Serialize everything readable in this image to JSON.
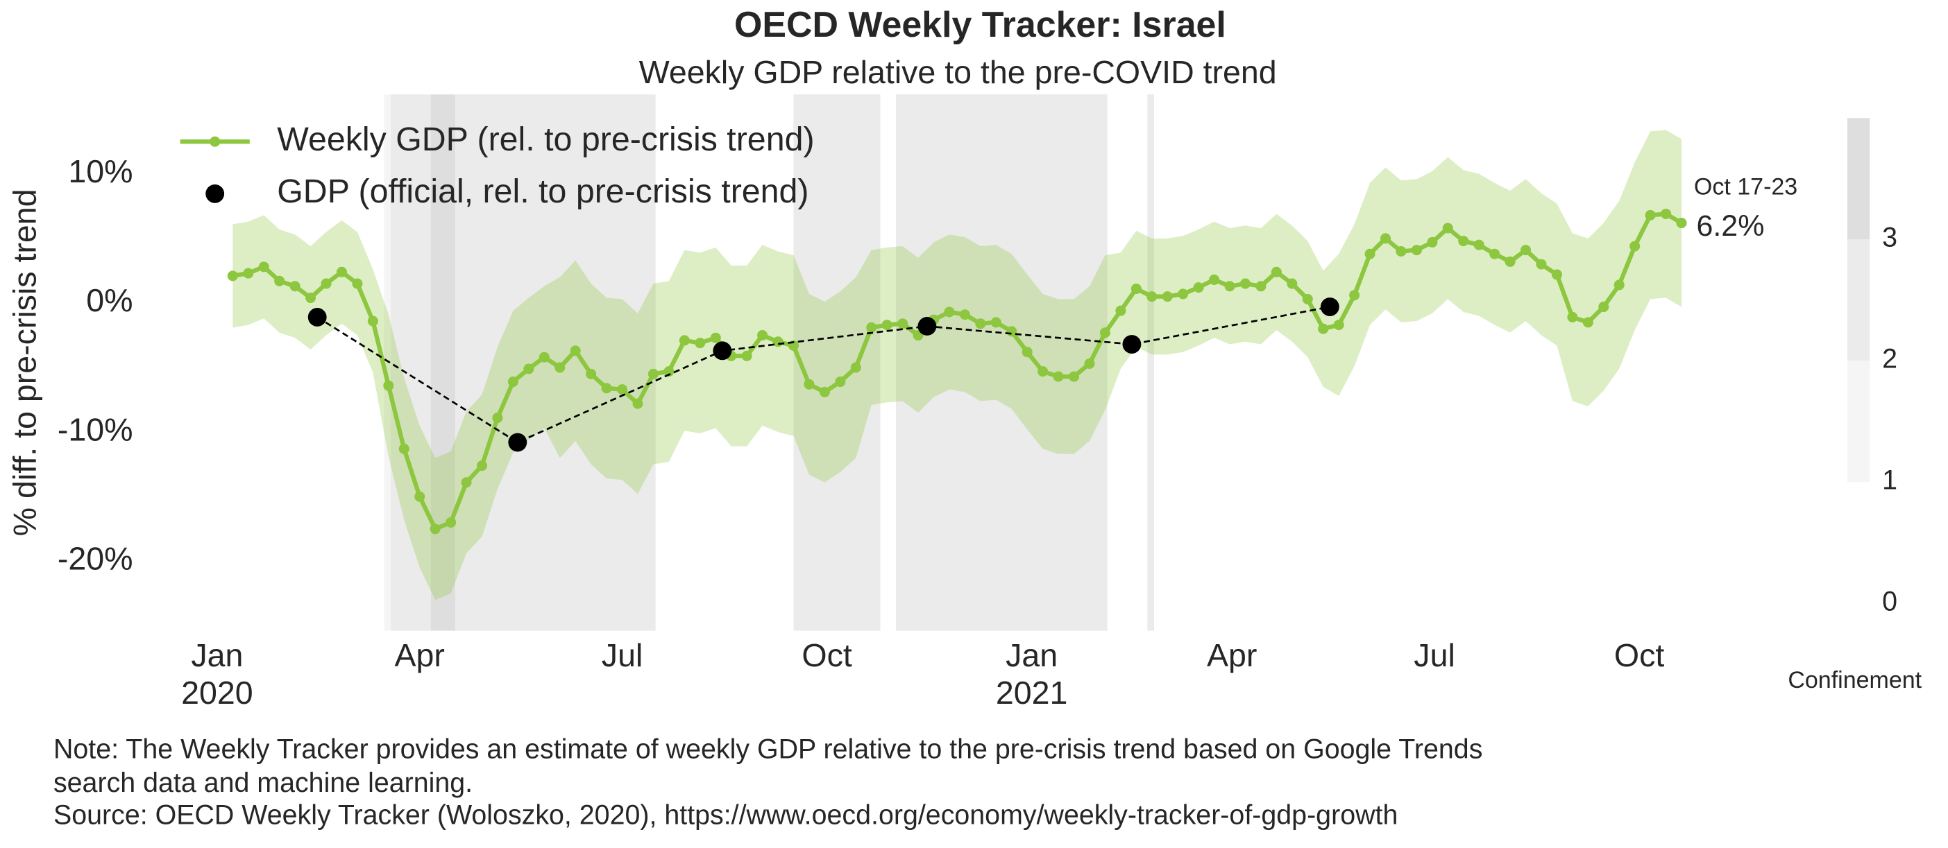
{
  "chart_data": {
    "type": "line",
    "title": "OECD Weekly Tracker: Israel",
    "subtitle": "Weekly GDP relative to the pre-COVID trend",
    "y_label": "% diff. to pre-crisis trend",
    "notes": [
      "Note: The Weekly Tracker provides an estimate of weekly GDP relative to the pre-crisis trend based on Google Trends",
      "search data and machine learning.",
      "Source: OECD Weekly Tracker (Woloszko, 2020), https://www.oecd.org/economy/weekly-tracker-of-gdp-growth"
    ],
    "xlim": [
      "2019-12-07",
      "2021-11-01"
    ],
    "xticks": [
      {
        "value": "2020-01-01",
        "label": [
          "Jan",
          "2020"
        ]
      },
      {
        "value": "2020-04-01",
        "label": "Apr"
      },
      {
        "value": "2020-07-01",
        "label": "Jul"
      },
      {
        "value": "2020-10-01",
        "label": "Oct"
      },
      {
        "value": "2021-01-01",
        "label": [
          "Jan",
          "2021"
        ]
      },
      {
        "value": "2021-04-01",
        "label": "Apr"
      },
      {
        "value": "2021-07-01",
        "label": "Jul"
      },
      {
        "value": "2021-10-01",
        "label": "Oct"
      }
    ],
    "ylim": [
      -25,
      15
    ],
    "yticks": [
      {
        "value": 10,
        "label": "10%"
      },
      {
        "value": 0,
        "label": "0%"
      },
      {
        "value": -10,
        "label": "-10%"
      },
      {
        "value": -20,
        "label": "-20%"
      }
    ],
    "grid": false,
    "legend": "upper left",
    "x": [
      "2020-01-08",
      "2020-01-15",
      "2020-01-22",
      "2020-01-29",
      "2020-02-05",
      "2020-02-12",
      "2020-02-19",
      "2020-02-26",
      "2020-03-04",
      "2020-03-11",
      "2020-03-18",
      "2020-03-25",
      "2020-04-01",
      "2020-04-08",
      "2020-04-15",
      "2020-04-22",
      "2020-04-29",
      "2020-05-06",
      "2020-05-13",
      "2020-05-20",
      "2020-05-27",
      "2020-06-03",
      "2020-06-10",
      "2020-06-17",
      "2020-06-24",
      "2020-07-01",
      "2020-07-08",
      "2020-07-15",
      "2020-07-22",
      "2020-07-29",
      "2020-08-05",
      "2020-08-12",
      "2020-08-19",
      "2020-08-26",
      "2020-09-02",
      "2020-09-09",
      "2020-09-16",
      "2020-09-23",
      "2020-09-30",
      "2020-10-07",
      "2020-10-14",
      "2020-10-21",
      "2020-10-28",
      "2020-11-04",
      "2020-11-11",
      "2020-11-18",
      "2020-11-25",
      "2020-12-02",
      "2020-12-09",
      "2020-12-16",
      "2020-12-23",
      "2020-12-30",
      "2021-01-06",
      "2021-01-13",
      "2021-01-20",
      "2021-01-27",
      "2021-02-03",
      "2021-02-10",
      "2021-02-17",
      "2021-02-24",
      "2021-03-03",
      "2021-03-10",
      "2021-03-17",
      "2021-03-24",
      "2021-03-31",
      "2021-04-07",
      "2021-04-14",
      "2021-04-21",
      "2021-04-28",
      "2021-05-05",
      "2021-05-12",
      "2021-05-19",
      "2021-05-26",
      "2021-06-02",
      "2021-06-09",
      "2021-06-16",
      "2021-06-23",
      "2021-06-30",
      "2021-07-07",
      "2021-07-14",
      "2021-07-21",
      "2021-07-28",
      "2021-08-04",
      "2021-08-11",
      "2021-08-18",
      "2021-08-25",
      "2021-09-01",
      "2021-09-08",
      "2021-09-15",
      "2021-09-22",
      "2021-09-29",
      "2021-10-06",
      "2021-10-13",
      "2021-10-20"
    ],
    "series": [
      {
        "name": "Weekly GDP (rel. to pre-crisis trend)",
        "color": "#8dc63f",
        "values": [
          2.1,
          2.3,
          2.8,
          1.7,
          1.3,
          0.4,
          1.5,
          2.4,
          1.5,
          -1.4,
          -6.4,
          -11.3,
          -15.0,
          -17.5,
          -17.0,
          -13.9,
          -12.6,
          -8.9,
          -6.1,
          -5.1,
          -4.2,
          -5.0,
          -3.7,
          -5.5,
          -6.6,
          -6.7,
          -7.8,
          -5.5,
          -5.3,
          -2.9,
          -3.1,
          -2.7,
          -4.1,
          -4.1,
          -2.5,
          -3.0,
          -3.3,
          -6.3,
          -6.9,
          -6.1,
          -5.0,
          -1.9,
          -1.7,
          -1.6,
          -2.5,
          -1.3,
          -0.7,
          -0.9,
          -1.6,
          -1.5,
          -2.2,
          -3.8,
          -5.3,
          -5.7,
          -5.7,
          -4.7,
          -2.3,
          -0.6,
          1.1,
          0.5,
          0.5,
          0.7,
          1.2,
          1.8,
          1.3,
          1.5,
          1.3,
          2.4,
          1.5,
          0.3,
          -2.0,
          -1.7,
          0.6,
          3.8,
          5.0,
          4.0,
          4.1,
          4.7,
          5.8,
          4.8,
          4.5,
          3.8,
          3.2,
          4.1,
          3.0,
          2.2,
          -1.1,
          -1.5,
          -0.3,
          1.4,
          4.4,
          6.8,
          6.9,
          6.2
        ],
        "band_upper": [
          6.1,
          6.3,
          6.8,
          5.7,
          5.3,
          4.4,
          5.5,
          6.4,
          5.5,
          2.6,
          -0.9,
          -5.8,
          -9.5,
          -12.0,
          -11.5,
          -8.4,
          -7.1,
          -3.4,
          -0.6,
          0.4,
          1.3,
          2.0,
          3.3,
          1.5,
          0.4,
          0.3,
          -0.8,
          1.5,
          1.7,
          4.1,
          3.9,
          4.3,
          2.9,
          2.9,
          4.5,
          4.0,
          3.7,
          0.7,
          0.1,
          0.9,
          2.0,
          4.1,
          4.3,
          4.4,
          3.5,
          4.7,
          5.3,
          5.1,
          4.4,
          4.5,
          3.8,
          2.2,
          0.7,
          0.3,
          0.3,
          1.3,
          3.7,
          3.9,
          5.6,
          5.0,
          5.0,
          5.2,
          5.7,
          6.3,
          5.8,
          6.0,
          5.8,
          6.9,
          6.0,
          4.8,
          2.5,
          3.8,
          6.1,
          9.3,
          10.5,
          9.5,
          9.6,
          10.2,
          11.3,
          10.3,
          10.0,
          9.3,
          8.7,
          9.6,
          8.5,
          7.7,
          5.4,
          5.0,
          6.2,
          7.9,
          10.9,
          13.3,
          13.4,
          12.7
        ],
        "band_lower": [
          -1.9,
          -1.7,
          -1.2,
          -2.3,
          -2.7,
          -3.6,
          -2.5,
          -1.6,
          -2.5,
          -5.4,
          -11.9,
          -16.8,
          -20.5,
          -23.0,
          -22.5,
          -19.4,
          -18.1,
          -14.4,
          -11.6,
          -10.6,
          -9.7,
          -12.0,
          -10.7,
          -12.5,
          -13.6,
          -13.7,
          -14.8,
          -12.5,
          -12.3,
          -9.9,
          -10.1,
          -9.7,
          -11.1,
          -11.1,
          -9.5,
          -10.0,
          -10.3,
          -13.3,
          -13.9,
          -13.1,
          -12.0,
          -7.9,
          -7.7,
          -7.6,
          -8.5,
          -7.3,
          -6.7,
          -6.9,
          -7.6,
          -7.5,
          -8.2,
          -9.8,
          -11.3,
          -11.7,
          -11.7,
          -10.7,
          -8.3,
          -5.1,
          -3.4,
          -4.0,
          -4.0,
          -3.8,
          -3.3,
          -2.7,
          -3.2,
          -3.0,
          -3.2,
          -2.1,
          -3.0,
          -4.2,
          -6.5,
          -7.2,
          -4.9,
          -1.7,
          -0.5,
          -1.5,
          -1.4,
          -0.8,
          0.3,
          -0.7,
          -1.0,
          -1.7,
          -2.3,
          -1.4,
          -2.5,
          -3.3,
          -7.6,
          -8.0,
          -6.8,
          -5.1,
          -2.1,
          0.3,
          0.4,
          -0.3
        ]
      },
      {
        "name": "GDP (official, rel. to pre-crisis trend)",
        "color": "#000000",
        "x": [
          "2020-02-15",
          "2020-05-15",
          "2020-08-15",
          "2020-11-15",
          "2021-02-15",
          "2021-05-15"
        ],
        "values": [
          -1.1,
          -10.8,
          -3.7,
          -1.8,
          -3.2,
          -0.3
        ]
      }
    ],
    "annotation": {
      "text": "Oct 17-23",
      "value": 6.2,
      "value_label": "6.2%"
    },
    "confinement": [
      {
        "start": "2020-03-16",
        "end": "2020-03-19",
        "level": 1
      },
      {
        "start": "2020-03-19",
        "end": "2020-04-06",
        "level": 2
      },
      {
        "start": "2020-04-06",
        "end": "2020-04-17",
        "level": 3
      },
      {
        "start": "2020-04-17",
        "end": "2020-07-16",
        "level": 2
      },
      {
        "start": "2020-09-16",
        "end": "2020-10-25",
        "level": 2
      },
      {
        "start": "2020-11-01",
        "end": "2021-02-04",
        "level": 2
      },
      {
        "start": "2021-02-22",
        "end": "2021-02-25",
        "level": 2
      }
    ],
    "colorbar": {
      "label": "Confinement",
      "lim": [
        0,
        4
      ],
      "ticks": [
        0,
        1,
        2,
        3
      ],
      "segments": [
        {
          "from": 1,
          "to": 2,
          "color": "#f5f5f5"
        },
        {
          "from": 2,
          "to": 3,
          "color": "#ebebeb"
        },
        {
          "from": 3,
          "to": 4,
          "color": "#dedede"
        }
      ]
    }
  }
}
